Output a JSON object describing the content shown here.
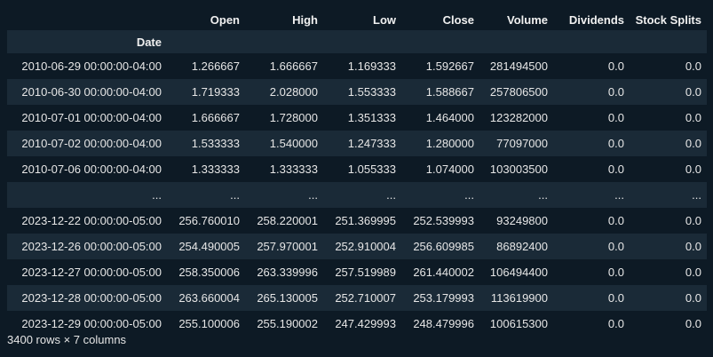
{
  "table": {
    "columns": [
      "Open",
      "High",
      "Low",
      "Close",
      "Volume",
      "Dividends",
      "Stock Splits"
    ],
    "index_name": "Date",
    "rows": [
      [
        "2010-06-29 00:00:00-04:00",
        "1.266667",
        "1.666667",
        "1.169333",
        "1.592667",
        "281494500",
        "0.0",
        "0.0"
      ],
      [
        "2010-06-30 00:00:00-04:00",
        "1.719333",
        "2.028000",
        "1.553333",
        "1.588667",
        "257806500",
        "0.0",
        "0.0"
      ],
      [
        "2010-07-01 00:00:00-04:00",
        "1.666667",
        "1.728000",
        "1.351333",
        "1.464000",
        "123282000",
        "0.0",
        "0.0"
      ],
      [
        "2010-07-02 00:00:00-04:00",
        "1.533333",
        "1.540000",
        "1.247333",
        "1.280000",
        "77097000",
        "0.0",
        "0.0"
      ],
      [
        "2010-07-06 00:00:00-04:00",
        "1.333333",
        "1.333333",
        "1.055333",
        "1.074000",
        "103003500",
        "0.0",
        "0.0"
      ],
      [
        "...",
        "...",
        "...",
        "...",
        "...",
        "...",
        "...",
        "..."
      ],
      [
        "2023-12-22 00:00:00-05:00",
        "256.760010",
        "258.220001",
        "251.369995",
        "252.539993",
        "93249800",
        "0.0",
        "0.0"
      ],
      [
        "2023-12-26 00:00:00-05:00",
        "254.490005",
        "257.970001",
        "252.910004",
        "256.609985",
        "86892400",
        "0.0",
        "0.0"
      ],
      [
        "2023-12-27 00:00:00-05:00",
        "258.350006",
        "263.339996",
        "257.519989",
        "261.440002",
        "106494400",
        "0.0",
        "0.0"
      ],
      [
        "2023-12-28 00:00:00-05:00",
        "263.660004",
        "265.130005",
        "252.710007",
        "253.179993",
        "113619900",
        "0.0",
        "0.0"
      ],
      [
        "2023-12-29 00:00:00-05:00",
        "255.100006",
        "255.190002",
        "247.429993",
        "248.479996",
        "100615300",
        "0.0",
        "0.0"
      ]
    ]
  },
  "footer": {
    "shape_text": "3400 rows × 7 columns"
  }
}
